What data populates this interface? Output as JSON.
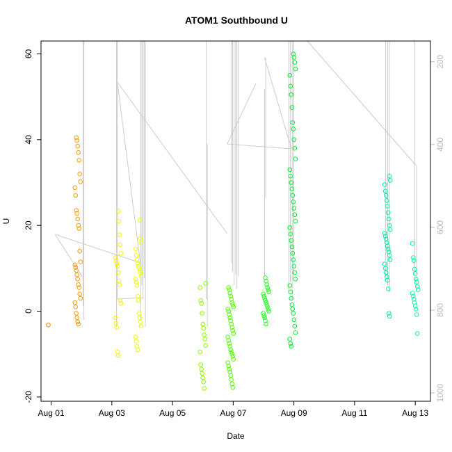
{
  "chart_data": {
    "type": "scatter",
    "title": "ATOM1 Southbound U",
    "xlabel": "Date",
    "ylabel": "U",
    "xlim": [
      "2023-07-31T16:00",
      "2023-08-13T12:00"
    ],
    "ylim": [
      -21,
      63
    ],
    "x_ticks": [
      "Aug 01",
      "Aug 03",
      "Aug 05",
      "Aug 07",
      "Aug 09",
      "Aug 11",
      "Aug 13"
    ],
    "y_ticks": [
      -20,
      0,
      20,
      40,
      60
    ],
    "right_axis": {
      "range": [
        1020,
        150
      ],
      "ticks": [
        200,
        400,
        600,
        800,
        1000
      ],
      "color": "#bbbbbb",
      "reversed": true
    },
    "depth_trace_color": "#cccccc",
    "clusters": [
      {
        "t": "2023-08-01T00:00",
        "color": "#ff8000",
        "values": [
          -3.2
        ]
      },
      {
        "t": "2023-08-01T21:00",
        "color": "#ff9900",
        "values": [
          40.5,
          39.8,
          38.5,
          37.0,
          35.2,
          32.0,
          30.2,
          28.8,
          27.0,
          23.5,
          22.8,
          21.5,
          20.0,
          19.3,
          14.0,
          11.5,
          10.8,
          10.2,
          9.5,
          8.5,
          7.5,
          6.2,
          5.5,
          4.0,
          3.0,
          2.0,
          1.0,
          -0.5,
          -1.5,
          -2.5,
          -3.0
        ]
      },
      {
        "t": "2023-08-03T05:00",
        "color": "#ffee00",
        "values": [
          23.3,
          21.0,
          17.8,
          15.5,
          13.5,
          12.5,
          11.8,
          11.0,
          10.5,
          9.0,
          7.0,
          6.2,
          2.5,
          1.8,
          -1.5,
          -2.8,
          -3.8,
          -9.5,
          -10.3
        ]
      },
      {
        "t": "2023-08-03T21:00",
        "color": "#eeff00",
        "values": [
          21.2,
          17.0,
          16.0,
          14.5,
          13.0,
          12.0,
          11.2,
          10.5,
          10.0,
          9.5,
          9.0,
          8.2,
          7.5,
          6.8,
          6.0,
          3.5,
          2.5,
          -0.5,
          -1.5,
          -2.5,
          -3.5,
          -6.0,
          -7.0,
          -8.2,
          -9.0
        ]
      },
      {
        "t": "2023-08-06T00:00",
        "color": "#88ff00",
        "values": [
          6.5,
          5.5,
          2.5,
          1.8,
          -0.5,
          -3.0,
          -4.0,
          -5.5,
          -6.5,
          -8.0,
          -9.5,
          -12.5,
          -13.5,
          -14.5,
          -15.5,
          -16.5,
          -18.0
        ]
      },
      {
        "t": "2023-08-06T22:00",
        "color": "#55ff00",
        "values": [
          5.5,
          5.0,
          4.2,
          3.5,
          2.8,
          2.0,
          1.5,
          1.0,
          0.5,
          0.0,
          -0.8,
          -1.5,
          -2.2,
          -3.0,
          -3.8,
          -4.5,
          -5.2,
          -6.0,
          -6.8,
          -7.5,
          -8.2,
          -9.0,
          -9.5,
          -10.0,
          -10.5,
          -11.2,
          -12.0,
          -12.8,
          -13.5,
          -14.2,
          -15.0,
          -16.0,
          -17.0,
          -17.8
        ]
      },
      {
        "t": "2023-08-08T02:00",
        "color": "#22ff22",
        "values": [
          7.8,
          7.0,
          6.2,
          5.5,
          5.0,
          4.5,
          4.0,
          3.5,
          3.0,
          2.5,
          2.0,
          1.5,
          1.0,
          0.5,
          0.0,
          -0.5,
          -1.0,
          -1.5,
          -2.2,
          -3.0
        ]
      },
      {
        "t": "2023-08-08T23:00",
        "color": "#00ee33",
        "values": [
          60.0,
          59.2,
          58.0,
          56.5,
          55.0,
          52.5,
          50.5,
          47.5,
          44.0,
          42.5,
          40.0,
          38.0,
          35.5,
          33.0,
          31.5,
          30.0,
          28.5,
          27.0,
          25.5,
          24.0,
          22.5,
          21.0,
          19.5,
          18.0,
          16.5,
          15.0,
          13.5,
          12.0,
          10.5,
          9.0,
          7.5,
          6.0,
          4.5,
          3.0,
          1.5,
          0.5,
          -0.5,
          -2.0,
          -3.5,
          -5.0,
          -6.5,
          -7.5,
          -8.2
        ]
      },
      {
        "t": "2023-08-12T02:00",
        "color": "#00eeaa",
        "values": [
          31.5,
          30.5,
          29.5,
          28.0,
          27.0,
          25.8,
          24.5,
          23.0,
          21.5,
          20.0,
          19.0,
          18.2,
          17.5,
          16.8,
          16.0,
          15.2,
          14.5,
          13.8,
          13.0,
          12.0,
          11.0,
          10.0,
          9.0,
          8.0,
          7.2,
          5.2,
          -0.5,
          -1.2
        ]
      },
      {
        "t": "2023-08-13T00:00",
        "color": "#00ffaa",
        "values": [
          15.8,
          12.5,
          11.8,
          9.8,
          8.8,
          7.5,
          6.8,
          5.8,
          5.0,
          4.2,
          3.5,
          2.8,
          2.0,
          1.2,
          0.5,
          -0.8,
          -5.2
        ]
      }
    ]
  }
}
